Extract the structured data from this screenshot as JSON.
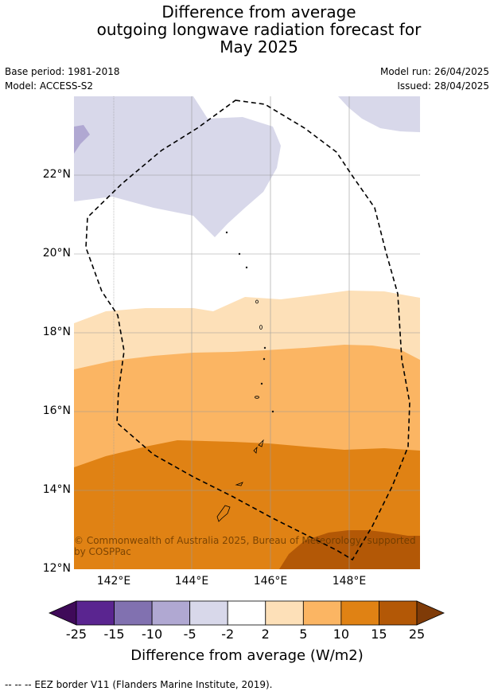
{
  "title": {
    "line1": "Difference from average",
    "line2": "outgoing longwave radiation forecast for",
    "line3": "May 2025"
  },
  "meta": {
    "base_period": "Base period: 1981-2018",
    "model": "Model: ACCESS-S2",
    "model_run": "Model run: 26/04/2025",
    "issued": "Issued: 28/04/2025"
  },
  "axes": {
    "lat_labels": [
      "22°N",
      "20°N",
      "18°N",
      "16°N",
      "14°N",
      "12°N"
    ],
    "lon_labels": [
      "142°E",
      "144°E",
      "146°E",
      "148°E"
    ]
  },
  "copyright": "© Commonwealth of Australia 2025, Bureau of Meteorology, supported by COSPPac",
  "colorbar": {
    "ticks": [
      "-25",
      "-15",
      "-10",
      "-5",
      "-2",
      "2",
      "5",
      "10",
      "15",
      "25"
    ],
    "label": "Difference from average (W/m2)",
    "colors": [
      "#3f0a59",
      "#5a2590",
      "#8171b0",
      "#b0a8d2",
      "#d8d8ea",
      "#ffffff",
      "#fde0b8",
      "#fbb563",
      "#e08214",
      "#b35806",
      "#7f3b08"
    ]
  },
  "legend": {
    "text": "--  --  -- EEZ border V11 (Flanders Marine Institute, 2019)."
  },
  "chart_data": {
    "type": "map",
    "extent": {
      "lon_min": 141.0,
      "lon_max": 149.8,
      "lat_min": 12.0,
      "lat_max": 24.0
    },
    "grid": true,
    "regions": [
      {
        "level": "-5 to -2",
        "color": "#d8d8ea",
        "area": "north-west"
      },
      {
        "level": "-10 to -5",
        "color": "#b0a8d2",
        "area": "far north-west corner"
      },
      {
        "level": "2 to 5",
        "color": "#fde0b8",
        "area": "about 17-19°N"
      },
      {
        "level": "5 to 10",
        "color": "#fbb563",
        "area": "about 15-17.5°N"
      },
      {
        "level": "10 to 15",
        "color": "#e08214",
        "area": "about 12.5-15.5°N"
      },
      {
        "level": "15 to 25",
        "color": "#b35806",
        "area": "south-east corner"
      }
    ]
  }
}
